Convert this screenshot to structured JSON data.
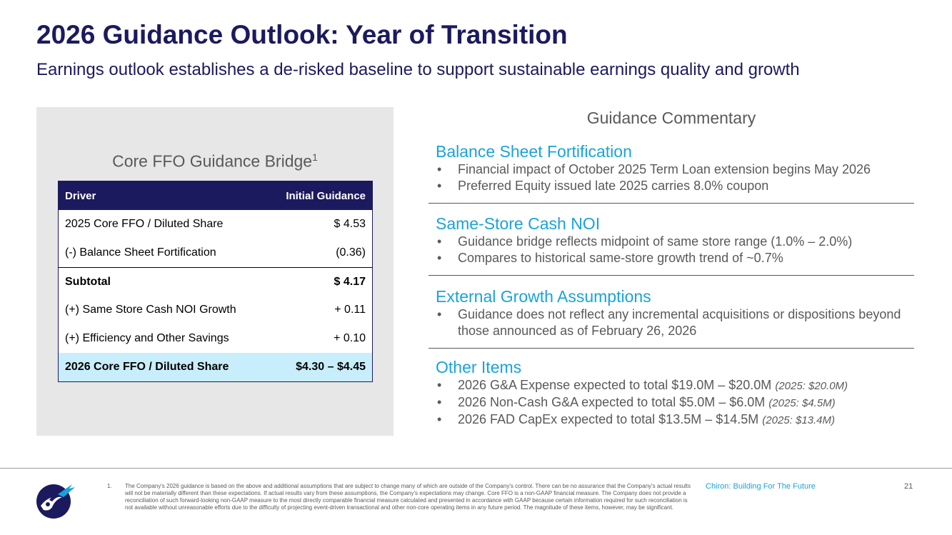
{
  "title": "2026 Guidance Outlook: Year of Transition",
  "subtitle": "Earnings outlook establishes a de-risked baseline to support sustainable earnings quality and growth",
  "bridge": {
    "title": "Core FFO Guidance Bridge",
    "title_sup": "1",
    "headers": {
      "driver": "Driver",
      "guidance": "Initial Guidance"
    },
    "rows": [
      {
        "label": "2025 Core FFO / Diluted Share",
        "value": "$ 4.53"
      },
      {
        "label": "(-) Balance Sheet Fortification",
        "value": "(0.36)"
      },
      {
        "label": "Subtotal",
        "value": "$ 4.17"
      },
      {
        "label": "(+) Same Store Cash NOI Growth",
        "value": "+ 0.11"
      },
      {
        "label": "(+) Efficiency and Other Savings",
        "value": "+ 0.10"
      },
      {
        "label": "2026 Core FFO / Diluted Share",
        "value": "$4.30 – $4.45"
      }
    ]
  },
  "commentary": {
    "heading": "Guidance Commentary",
    "sections": [
      {
        "title": "Balance Sheet Fortification",
        "bullets": [
          {
            "text": "Financial impact of October 2025 Term Loan extension begins May 2026"
          },
          {
            "text": "Preferred Equity issued late 2025 carries 8.0% coupon"
          }
        ]
      },
      {
        "title": "Same-Store Cash NOI",
        "bullets": [
          {
            "text": "Guidance bridge reflects midpoint of same store range (1.0% – 2.0%)"
          },
          {
            "text": "Compares to historical same-store growth trend of ~0.7%"
          }
        ]
      },
      {
        "title": "External Growth Assumptions",
        "bullets": [
          {
            "text": "Guidance does not reflect any incremental acquisitions or dispositions beyond those announced as of February 26, 2026"
          }
        ]
      },
      {
        "title": "Other Items",
        "bullets": [
          {
            "text": "2026 G&A Expense expected to total $19.0M – $20.0M",
            "note": "(2025: $20.0M)"
          },
          {
            "text": "2026 Non-Cash G&A expected to total $5.0M – $6.0M",
            "note": "(2025: $4.5M)"
          },
          {
            "text": "2026 FAD CapEx expected to total $13.5M – $14.5M",
            "note": "(2025: $13.4M)"
          }
        ]
      }
    ]
  },
  "footer": {
    "footnote_number": "1.",
    "footnote": "The Company's 2026 guidance is based on the above and additional assumptions that are subject to change many of which are outside of the Company's control. There can be no assurance that the Company's actual results will not be materially different than these expectations. If actual results vary from these assumptions, the Company's expectations may change. Core FFO is a non-GAAP financial measure. The Company does not provide a reconciliation of such forward-looking non-GAAP measure to the most directly comparable financial measure calculated and presented in accordance with GAAP because certain information required for such reconciliation is not available without unreasonable efforts due to the difficulty of projecting event-driven transactional and other non-core operating items in any future period. The magnitude of these items, however, may be significant.",
    "tagline": "Chiron: Building For The Future",
    "page": "21",
    "logo_icon": "chiron-logo-icon"
  },
  "colors": {
    "navy": "#1c1a5e",
    "accent_blue": "#1aa3d8",
    "highlight_row": "#c9eefb",
    "panel_gray": "#e7e7e7"
  }
}
